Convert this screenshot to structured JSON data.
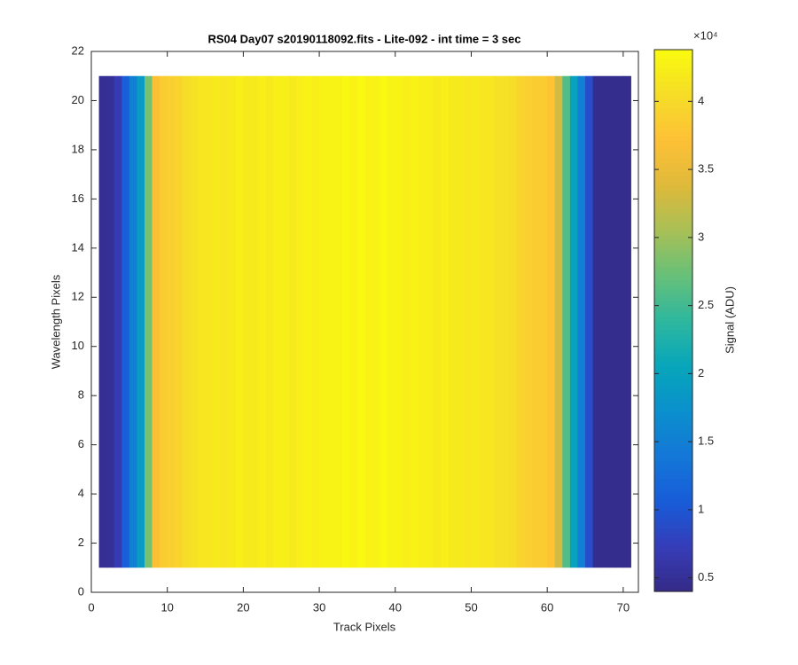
{
  "chart_data": {
    "type": "heatmap",
    "title": "RS04 Day07  s20190118092.fits - Lite-092 - int time = 3 sec",
    "x_label": "Track Pixels",
    "y_label": "Wavelength Pixels",
    "x_edges": [
      1,
      2,
      3,
      4,
      5,
      6,
      7,
      8,
      9,
      10,
      11,
      12,
      13,
      14,
      15,
      16,
      17,
      18,
      19,
      20,
      21,
      22,
      23,
      24,
      25,
      26,
      27,
      28,
      29,
      30,
      31,
      32,
      33,
      34,
      35,
      36,
      37,
      38,
      39,
      40,
      41,
      42,
      43,
      44,
      45,
      46,
      47,
      48,
      49,
      50,
      51,
      52,
      53,
      54,
      55,
      56,
      57,
      58,
      59,
      60,
      61,
      62,
      63,
      64,
      65,
      66,
      67,
      68,
      69,
      70,
      71
    ],
    "y_range": [
      1,
      21
    ],
    "values": [
      4800,
      5000,
      7000,
      11000,
      15000,
      19000,
      28000,
      37000,
      38500,
      39000,
      39500,
      40500,
      41000,
      41500,
      41500,
      42000,
      41500,
      42000,
      42500,
      42000,
      42000,
      42500,
      42000,
      42500,
      42500,
      42000,
      42500,
      43000,
      42500,
      43000,
      43000,
      43000,
      43500,
      43000,
      43500,
      43000,
      43000,
      43500,
      43000,
      43000,
      42500,
      43000,
      42500,
      42500,
      42000,
      42500,
      42000,
      42000,
      41500,
      42000,
      41500,
      41500,
      41000,
      41000,
      40500,
      39500,
      39000,
      38500,
      38500,
      37500,
      33000,
      26000,
      20000,
      15000,
      9000,
      4500,
      4500,
      4500,
      4500,
      4500
    ],
    "xlim": [
      0,
      72
    ],
    "xticks": [
      0,
      10,
      20,
      30,
      40,
      50,
      60,
      70
    ],
    "ylim": [
      0,
      22
    ],
    "yticks": [
      0,
      2,
      4,
      6,
      8,
      10,
      12,
      14,
      16,
      18,
      20,
      22
    ],
    "colormap": "parula",
    "clim": [
      4000,
      43800
    ],
    "cticks": [
      {
        "value": 5000,
        "label": "0.5"
      },
      {
        "value": 10000,
        "label": "1"
      },
      {
        "value": 15000,
        "label": "1.5"
      },
      {
        "value": 20000,
        "label": "2"
      },
      {
        "value": 25000,
        "label": "2.5"
      },
      {
        "value": 30000,
        "label": "3"
      },
      {
        "value": 35000,
        "label": "3.5"
      },
      {
        "value": 40000,
        "label": "4"
      }
    ],
    "colorbar_exponent": "×10⁴",
    "colorbar_label": "Signal (ADU)"
  }
}
